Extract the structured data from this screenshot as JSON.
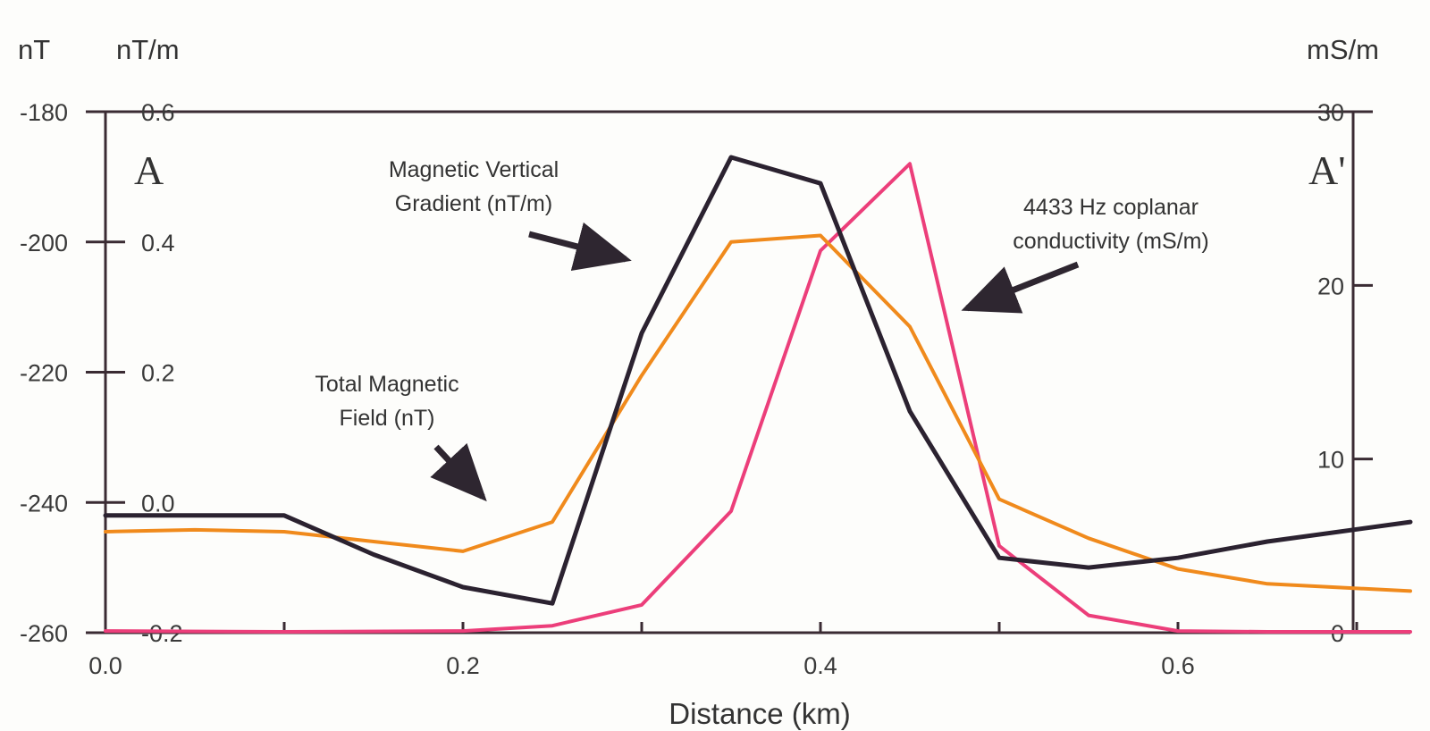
{
  "chart_data": {
    "type": "line",
    "xlabel": "Distance (km)",
    "xlim": [
      0.0,
      0.73
    ],
    "x_ticks": [
      "0.0",
      "0.2",
      "0.4",
      "0.6"
    ],
    "axes": {
      "left_outer": {
        "unit": "nT",
        "ticks": [
          "-180",
          "-200",
          "-220",
          "-240",
          "-260"
        ],
        "range": [
          -260,
          -180
        ]
      },
      "left_inner": {
        "unit": "nT/m",
        "ticks": [
          "0.6",
          "0.4",
          "0.2",
          "0.0",
          "-0.2"
        ],
        "range": [
          -0.2,
          0.6
        ]
      },
      "right": {
        "unit": "mS/m",
        "ticks": [
          "30",
          "20",
          "10",
          "0"
        ],
        "range": [
          0,
          30
        ]
      }
    },
    "endpoints": {
      "left": "A",
      "right": "A'"
    },
    "series": [
      {
        "key": "gradient",
        "axis": "left_inner",
        "color": "#2b2230",
        "x": [
          0.0,
          0.1,
          0.15,
          0.2,
          0.25,
          0.3,
          0.35,
          0.4,
          0.45,
          0.5,
          0.55,
          0.6,
          0.65,
          0.73
        ],
        "y": [
          -0.02,
          -0.02,
          -0.08,
          -0.13,
          -0.155,
          0.26,
          0.53,
          0.49,
          0.14,
          -0.085,
          -0.1,
          -0.085,
          -0.06,
          -0.03
        ]
      },
      {
        "key": "total_field",
        "axis": "left_outer",
        "color": "#f08a1c",
        "x": [
          0.0,
          0.05,
          0.1,
          0.15,
          0.2,
          0.25,
          0.3,
          0.35,
          0.4,
          0.45,
          0.5,
          0.55,
          0.6,
          0.65,
          0.73
        ],
        "y": [
          -244.5,
          -244.2,
          -244.5,
          -246,
          -247.5,
          -243,
          -220.5,
          -200,
          -199,
          -213,
          -239.5,
          -245.5,
          -250.2,
          -252.5,
          -253.6
        ]
      },
      {
        "key": "conductivity",
        "axis": "right",
        "color": "#ec3e7a",
        "x": [
          0.0,
          0.1,
          0.2,
          0.25,
          0.3,
          0.35,
          0.4,
          0.45,
          0.5,
          0.55,
          0.6,
          0.65,
          0.73
        ],
        "y": [
          0.1,
          0.05,
          0.1,
          0.4,
          1.6,
          7.0,
          22.0,
          27.0,
          5.0,
          1.0,
          0.1,
          0.05,
          0.05
        ]
      }
    ],
    "annotations": [
      {
        "target": "gradient",
        "lines": [
          "Magnetic Vertical",
          "Gradient (nT/m)"
        ]
      },
      {
        "target": "conductivity",
        "lines": [
          "4433 Hz coplanar",
          "conductivity (mS/m)"
        ]
      },
      {
        "target": "total_field",
        "lines": [
          "Total Magnetic",
          "Field (nT)"
        ]
      }
    ],
    "colors": {
      "axis": "#3a2b33",
      "text": "#333333"
    }
  }
}
